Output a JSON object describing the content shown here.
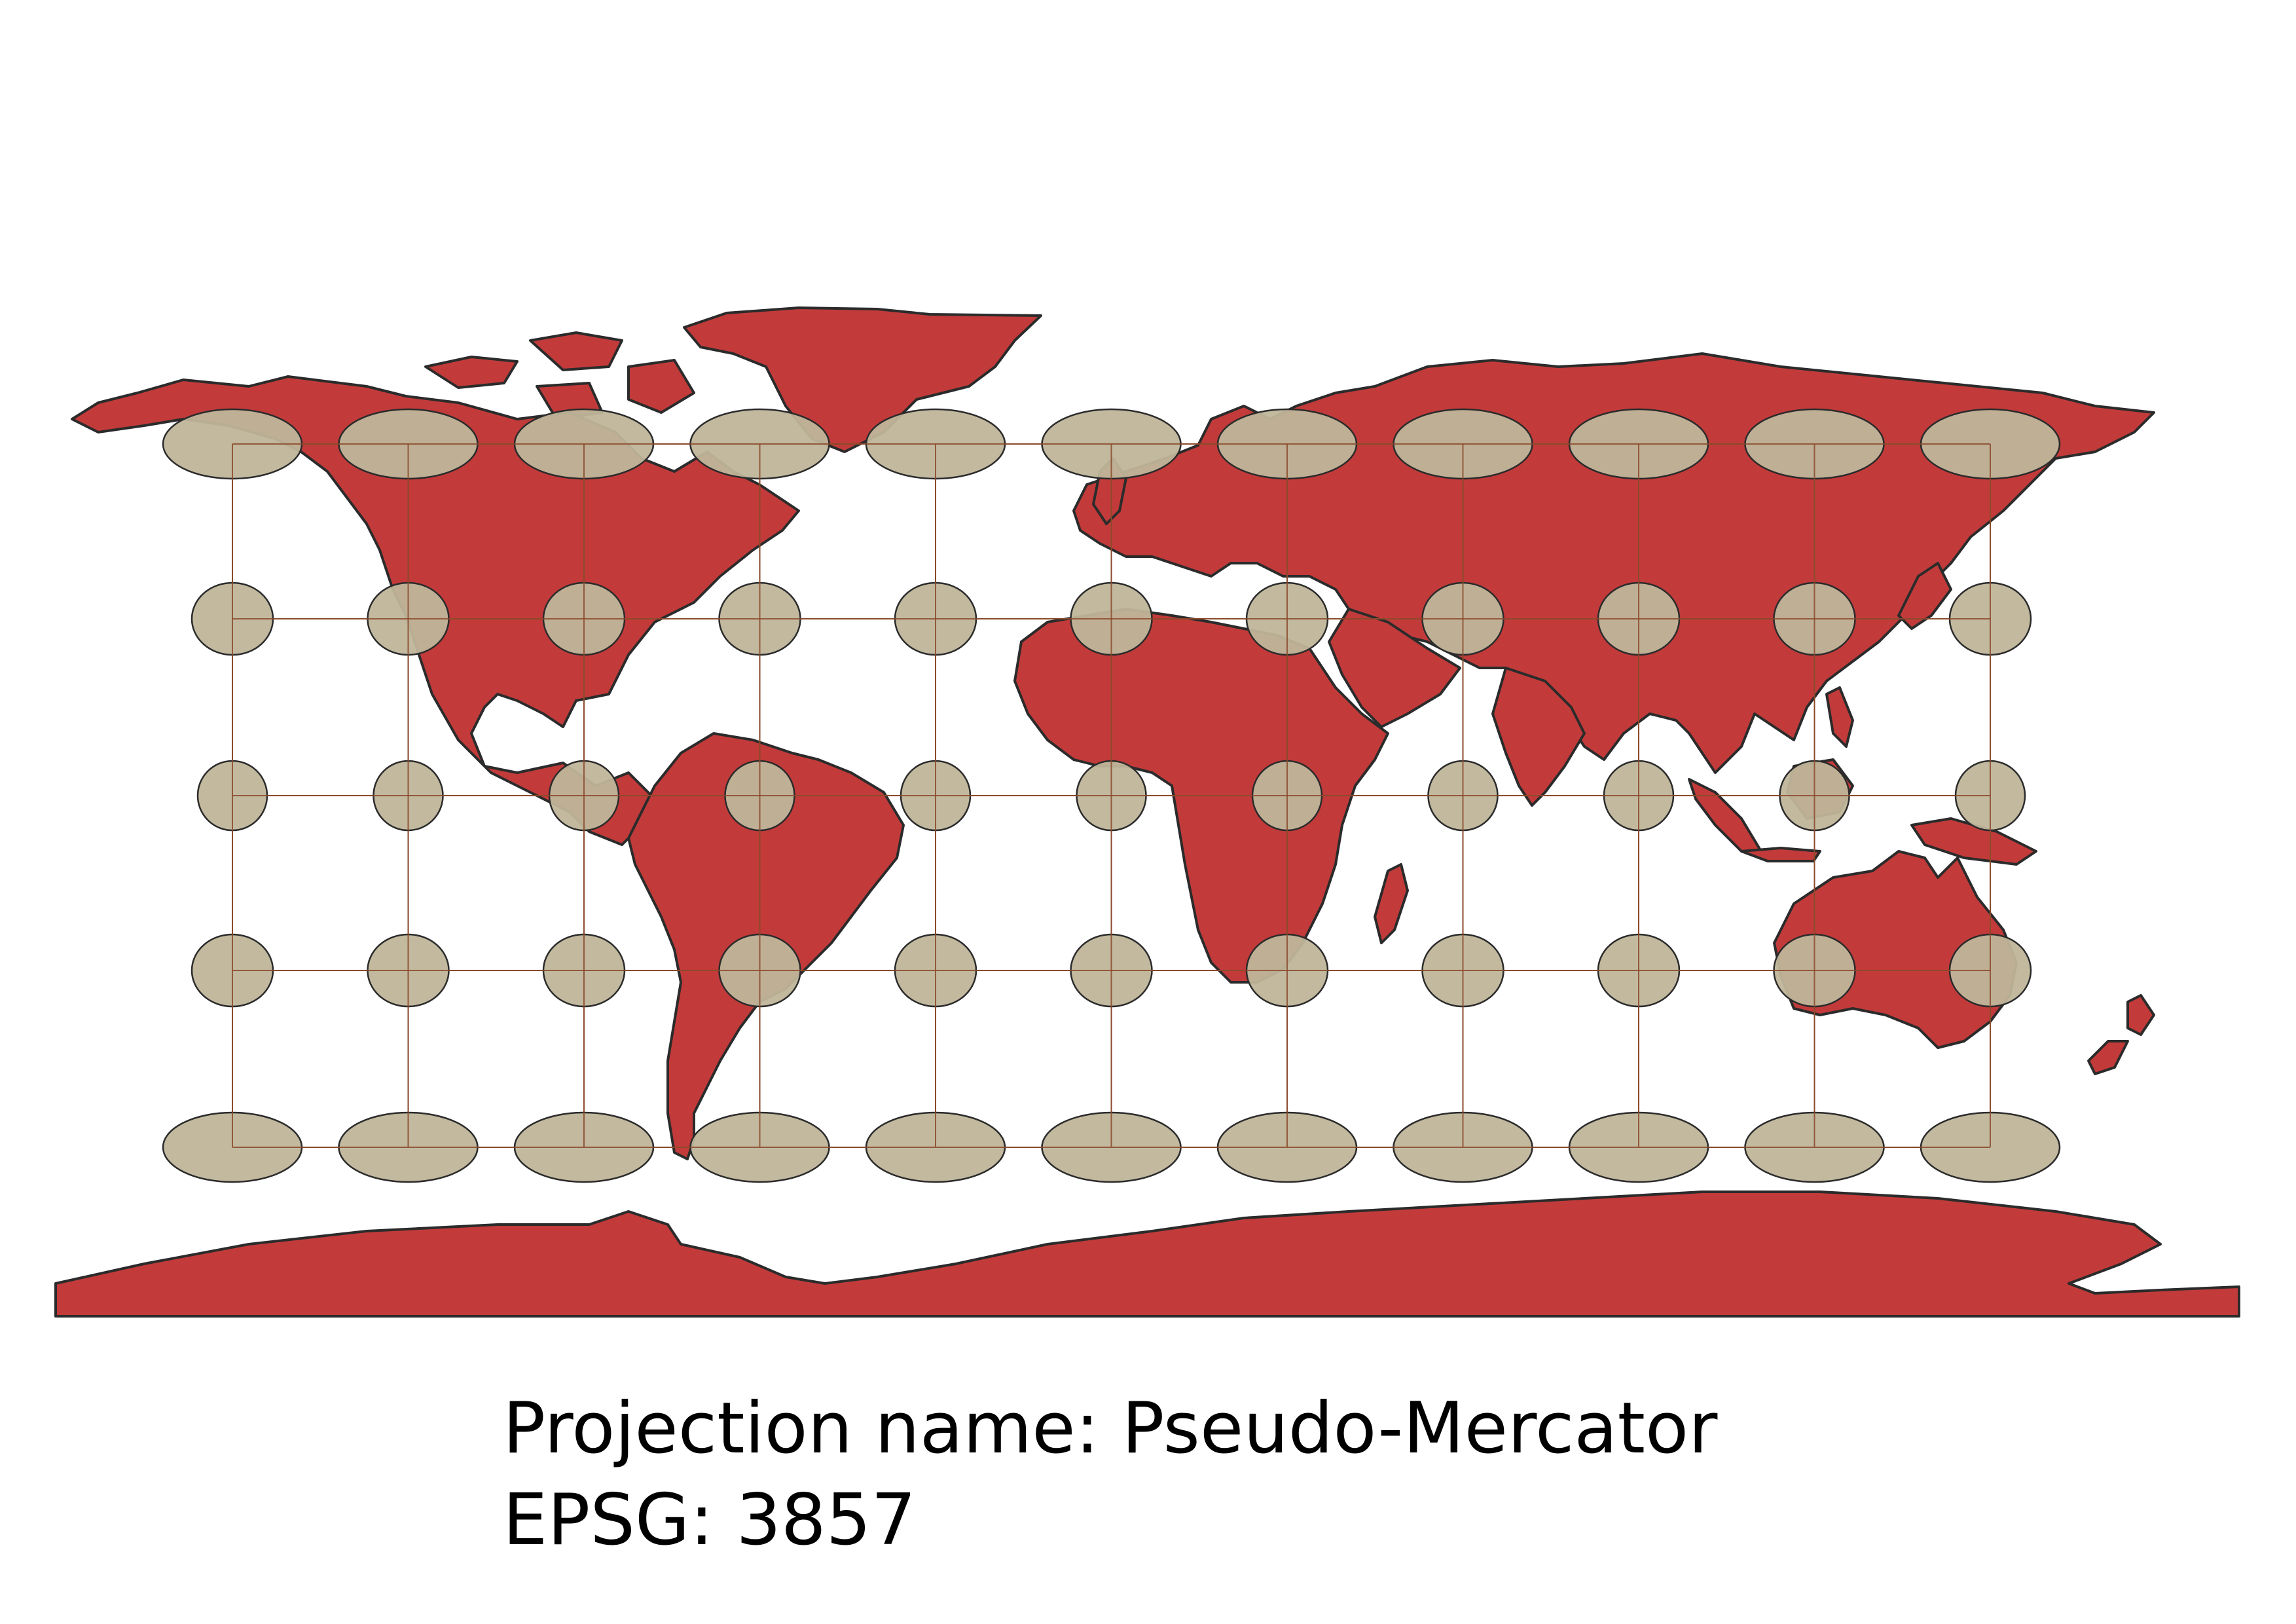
{
  "map": {
    "title_label": "Projection name:",
    "projection_name": "Pseudo-Mercator",
    "epsg_label": "EPSG:",
    "epsg_code": "3857",
    "colors": {
      "land": "#c23b3a",
      "outline": "#2b2b2b",
      "graticule": "#8b4a2b",
      "indicatrix": "#bfb59a",
      "background": "#ffffff"
    },
    "indicatrix_rows": [
      {
        "latitude": 60,
        "shape": "wide ellipse"
      },
      {
        "latitude": 30,
        "shape": "ellipse"
      },
      {
        "latitude": 0,
        "shape": "circle"
      },
      {
        "latitude": -30,
        "shape": "ellipse"
      },
      {
        "latitude": -60,
        "shape": "wide ellipse"
      }
    ],
    "indicatrix_columns": 11
  }
}
